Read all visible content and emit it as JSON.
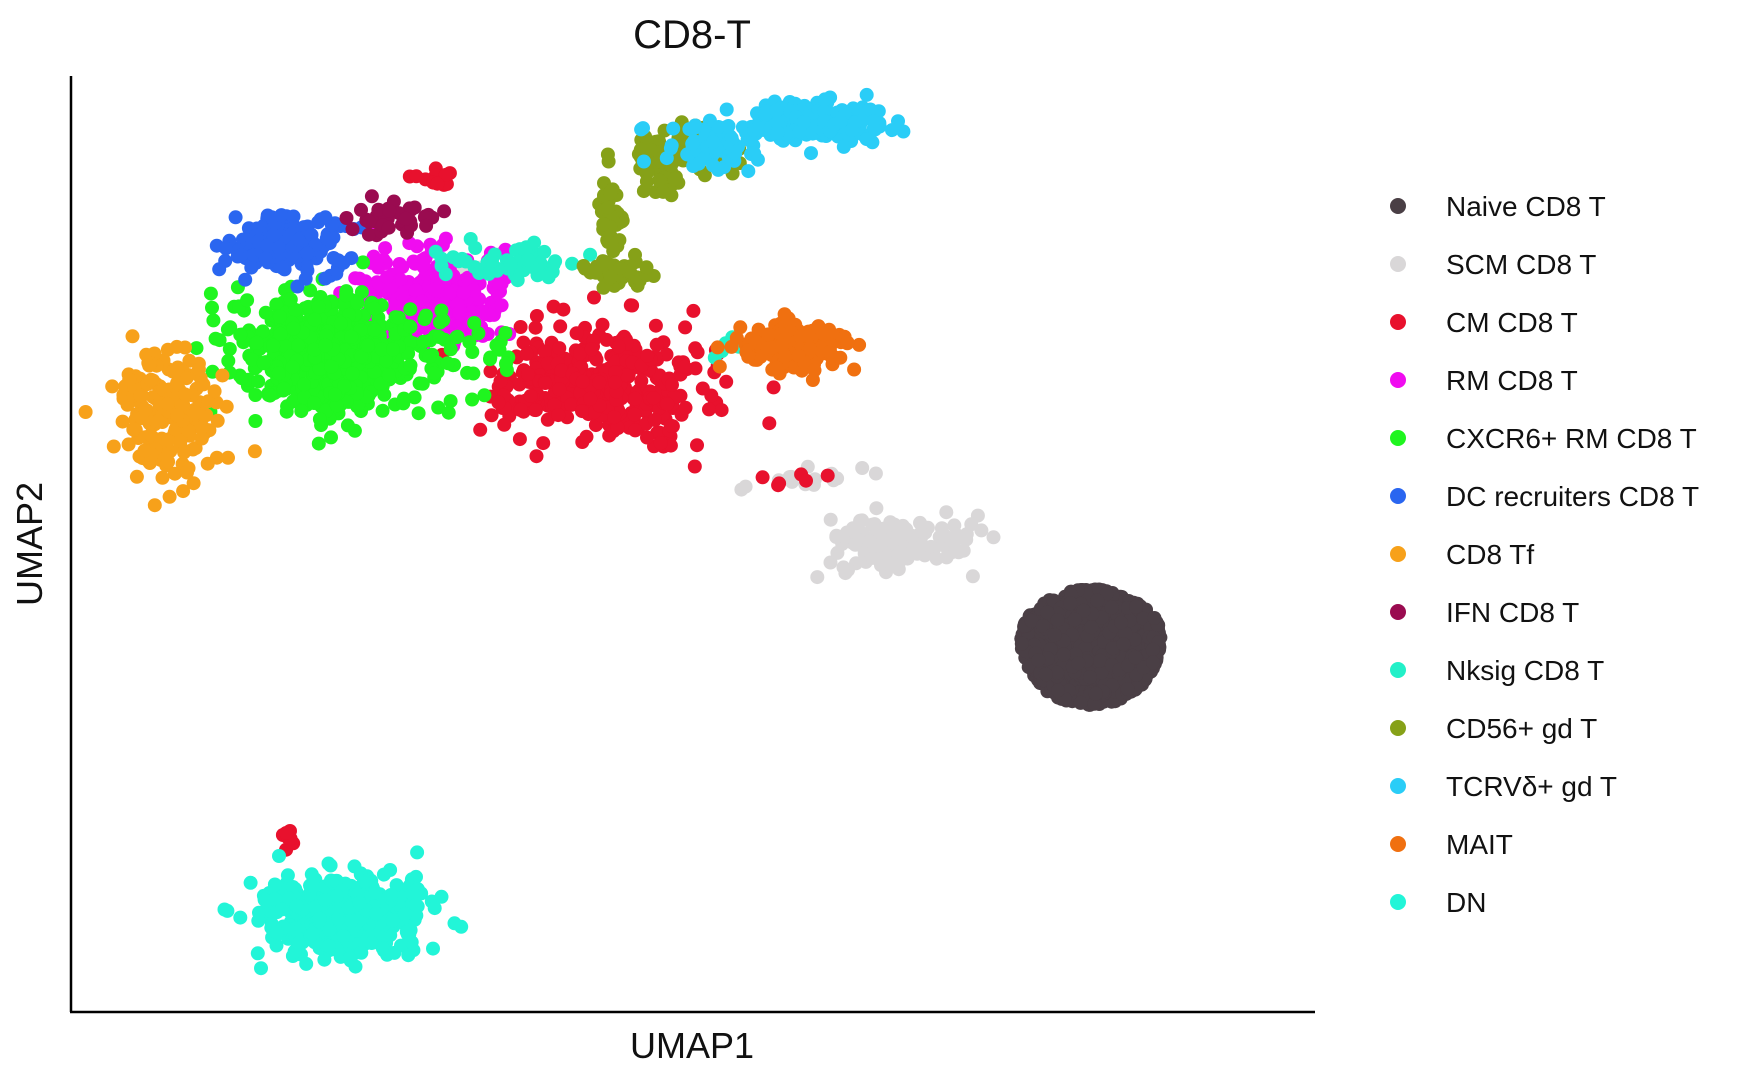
{
  "chart_data": {
    "type": "scatter",
    "title": "CD8-T",
    "xlabel": "UMAP1",
    "ylabel": "UMAP2",
    "xlim": [
      0,
      100
    ],
    "ylim": [
      0,
      100
    ],
    "grid": false,
    "ticks": false,
    "legend_position": "right",
    "series": [
      {
        "name": "Naive CD8 T",
        "color": "#4a3f45",
        "clusters": [
          {
            "cx": 82,
            "cy": 39,
            "sx": 5.2,
            "sy": 6.6,
            "n": 1400,
            "w": 5.6,
            "h": 6.2
          }
        ]
      },
      {
        "name": "SCM CD8 T",
        "color": "#d9d7d8",
        "clusters": [
          {
            "cx": 66,
            "cy": 50,
            "sx": 2.8,
            "sy": 1.5,
            "n": 130
          },
          {
            "cx": 60,
            "cy": 57,
            "sx": 2.5,
            "sy": 1.0,
            "n": 15
          },
          {
            "cx": 34,
            "cy": 80,
            "sx": 1.5,
            "sy": 0.8,
            "n": 10
          }
        ]
      },
      {
        "name": "CM CD8 T",
        "color": "#e8112d",
        "clusters": [
          {
            "cx": 43,
            "cy": 67,
            "sx": 4.2,
            "sy": 3.0,
            "n": 380
          },
          {
            "cx": 17.5,
            "cy": 19,
            "sx": 0.5,
            "sy": 0.9,
            "n": 9
          },
          {
            "cx": 30,
            "cy": 89,
            "sx": 1.2,
            "sy": 0.6,
            "n": 14
          },
          {
            "cx": 36,
            "cy": 65,
            "sx": 1.2,
            "sy": 1.0,
            "n": 20
          },
          {
            "cx": 58,
            "cy": 57,
            "sx": 1.5,
            "sy": 0.8,
            "n": 6
          }
        ]
      },
      {
        "name": "RM CD8 T",
        "color": "#f00cf0",
        "clusters": [
          {
            "cx": 29,
            "cy": 76,
            "sx": 3.0,
            "sy": 2.4,
            "n": 300
          }
        ]
      },
      {
        "name": "CXCR6+ RM CD8 T",
        "color": "#1ff51f",
        "clusters": [
          {
            "cx": 21,
            "cy": 70,
            "sx": 3.6,
            "sy": 3.0,
            "n": 700
          },
          {
            "cx": 32,
            "cy": 70,
            "sx": 2.0,
            "sy": 1.5,
            "n": 30
          }
        ]
      },
      {
        "name": "DC recruiters CD8 T",
        "color": "#2a66f0",
        "clusters": [
          {
            "cx": 17,
            "cy": 82,
            "sx": 2.3,
            "sy": 1.6,
            "n": 180
          }
        ]
      },
      {
        "name": "CD8 Tf",
        "color": "#f7a11a",
        "clusters": [
          {
            "cx": 8,
            "cy": 64,
            "sx": 2.0,
            "sy": 3.2,
            "n": 200
          }
        ]
      },
      {
        "name": "IFN CD8 T",
        "color": "#9a0b50",
        "clusters": [
          {
            "cx": 26,
            "cy": 85,
            "sx": 1.7,
            "sy": 1.0,
            "n": 40
          }
        ]
      },
      {
        "name": "Nksig CD8 T",
        "color": "#22f0c8",
        "clusters": [
          {
            "cx": 36,
            "cy": 80,
            "sx": 2.5,
            "sy": 0.8,
            "n": 60
          },
          {
            "cx": 54,
            "cy": 71,
            "sx": 1.5,
            "sy": 0.6,
            "n": 6
          }
        ]
      },
      {
        "name": "CD56+ gd T",
        "color": "#86a118",
        "clusters": [
          {
            "cx": 44,
            "cy": 79,
            "sx": 1.5,
            "sy": 0.8,
            "n": 50
          },
          {
            "cx": 43.5,
            "cy": 85,
            "sx": 0.5,
            "sy": 2.5,
            "n": 40
          },
          {
            "cx": 47,
            "cy": 90.5,
            "sx": 1.0,
            "sy": 1.5,
            "n": 60
          },
          {
            "cx": 50,
            "cy": 92,
            "sx": 2.0,
            "sy": 1.2,
            "n": 50
          }
        ]
      },
      {
        "name": "TCRVδ+ gd T",
        "color": "#2acdf7",
        "clusters": [
          {
            "cx": 52,
            "cy": 92.5,
            "sx": 2.2,
            "sy": 1.2,
            "n": 80
          },
          {
            "cx": 60,
            "cy": 95,
            "sx": 2.8,
            "sy": 1.2,
            "n": 170
          }
        ]
      },
      {
        "name": "MAIT",
        "color": "#f07010",
        "clusters": [
          {
            "cx": 58,
            "cy": 71,
            "sx": 2.3,
            "sy": 1.4,
            "n": 150
          }
        ]
      },
      {
        "name": "DN",
        "color": "#22f5d8",
        "clusters": [
          {
            "cx": 22,
            "cy": 10.5,
            "sx": 3.5,
            "sy": 2.1,
            "n": 450
          }
        ]
      }
    ]
  }
}
